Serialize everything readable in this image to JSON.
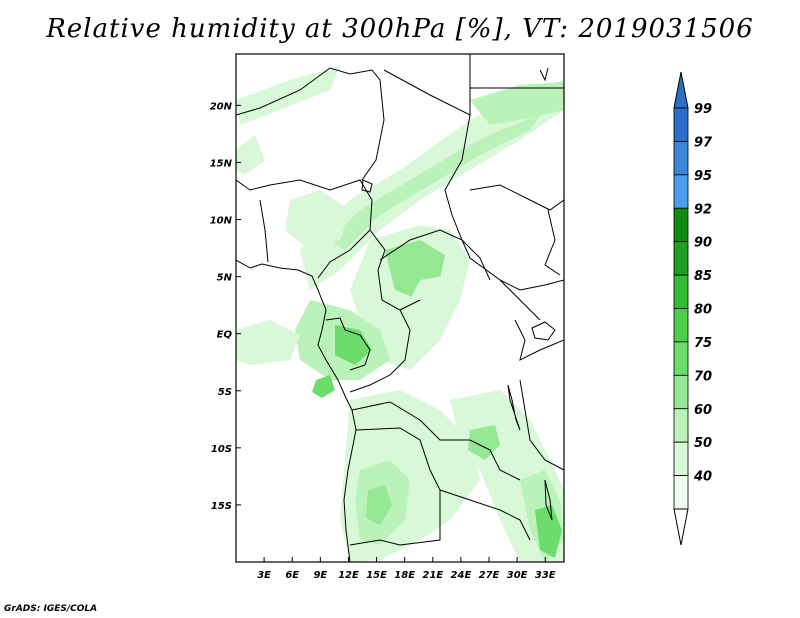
{
  "title": "Relative humidity at 300hPa [%], VT: 2019031506",
  "credit": "GrADS: IGES/COLA",
  "map": {
    "lon_range": [
      0,
      35
    ],
    "lat_range": [
      -20,
      24.5
    ],
    "x_ticks": [
      {
        "lon": 3,
        "label": "3E"
      },
      {
        "lon": 6,
        "label": "6E"
      },
      {
        "lon": 9,
        "label": "9E"
      },
      {
        "lon": 12,
        "label": "12E"
      },
      {
        "lon": 15,
        "label": "15E"
      },
      {
        "lon": 18,
        "label": "18E"
      },
      {
        "lon": 21,
        "label": "21E"
      },
      {
        "lon": 24,
        "label": "24E"
      },
      {
        "lon": 27,
        "label": "27E"
      },
      {
        "lon": 30,
        "label": "30E"
      },
      {
        "lon": 33,
        "label": "33E"
      }
    ],
    "y_ticks": [
      {
        "lat": 20,
        "label": "20N"
      },
      {
        "lat": 15,
        "label": "15N"
      },
      {
        "lat": 10,
        "label": "10N"
      },
      {
        "lat": 5,
        "label": "5N"
      },
      {
        "lat": 0,
        "label": "EQ"
      },
      {
        "lat": -5,
        "label": "5S"
      },
      {
        "lat": -10,
        "label": "10S"
      },
      {
        "lat": -15,
        "label": "15S"
      }
    ]
  },
  "colorbar": {
    "levels": [
      {
        "value": "99",
        "color": "#2a70c8"
      },
      {
        "value": "97",
        "color": "#3a88dc"
      },
      {
        "value": "95",
        "color": "#4aa0ec"
      },
      {
        "value": "92",
        "color": "#108a10"
      },
      {
        "value": "90",
        "color": "#20a020"
      },
      {
        "value": "85",
        "color": "#34bc34"
      },
      {
        "value": "80",
        "color": "#4cd04c"
      },
      {
        "value": "75",
        "color": "#6cdc6c"
      },
      {
        "value": "70",
        "color": "#94e894"
      },
      {
        "value": "60",
        "color": "#baf2ba"
      },
      {
        "value": "50",
        "color": "#d8f8d8"
      },
      {
        "value": "40",
        "color": "#f0fcf0"
      }
    ],
    "top_color": "#2a70c8",
    "bottom_color": "#ffffff"
  }
}
